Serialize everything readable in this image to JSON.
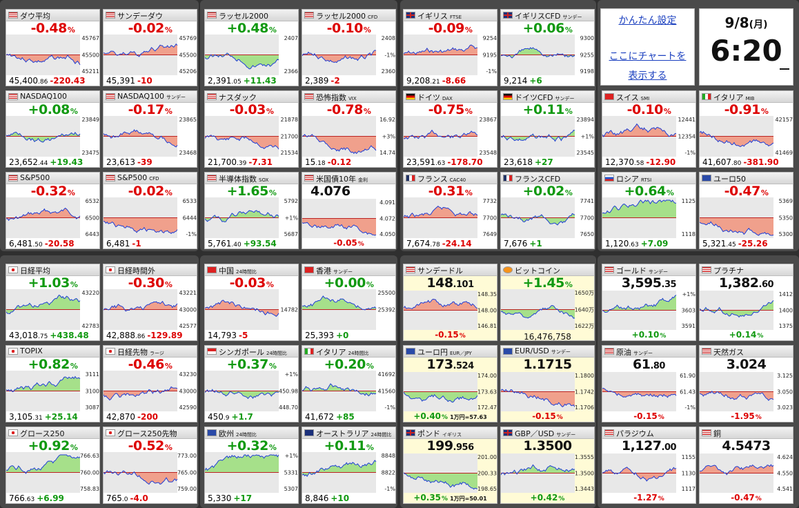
{
  "colors": {
    "up": "#119911",
    "down": "#dd0000",
    "line": "#1f3fd6",
    "fillUp": "#a6e08a",
    "fillDown": "#f0a08c",
    "base": "#bb2222"
  },
  "settings": {
    "simple_settings": "かんたん設定",
    "chart_line1": "ここにチャートを",
    "chart_line2": "表示する"
  },
  "clock": {
    "date": "9/8",
    "dow": "(月)",
    "time": "6:20"
  },
  "tiles": [
    {
      "name": "ダウ平均",
      "sub": "",
      "flag": "us",
      "chg": "-0.48",
      "dir": "dn",
      "ticks": [
        "45767",
        "45500",
        "45211"
      ],
      "p": "45,400",
      "pd": ".86",
      "d": "-220.43"
    },
    {
      "name": "サンデーダウ",
      "sub": "",
      "flag": "us",
      "chg": "-0.02",
      "dir": "dn",
      "ticks": [
        "45769",
        "45500",
        "45206"
      ],
      "p": "45,391",
      "pd": "",
      "d": "-10"
    },
    {
      "name": "ラッセル2000",
      "sub": "",
      "flag": "us",
      "chg": "+0.48",
      "dir": "up",
      "ticks": [
        "2407",
        "",
        "2366"
      ],
      "p": "2,391",
      "pd": ".05",
      "d": "+11.43"
    },
    {
      "name": "ラッセル2000",
      "sub": "CFD",
      "flag": "us",
      "chg": "-0.10",
      "dir": "dn",
      "ticks": [
        "2408",
        "-1%",
        "2360"
      ],
      "p": "2,389",
      "pd": "",
      "d": "-2"
    },
    {
      "name": "イギリス",
      "sub": "FTSE",
      "flag": "uk",
      "chg": "-0.09",
      "dir": "dn",
      "ticks": [
        "9254",
        "9195",
        "-1%"
      ],
      "p": "9,208",
      "pd": ".21",
      "d": "-8.66"
    },
    {
      "name": "イギリスCFD",
      "sub": "サンデー",
      "flag": "uk",
      "chg": "+0.06",
      "dir": "up",
      "ticks": [
        "9300",
        "9255",
        "9198"
      ],
      "p": "9,214",
      "pd": "",
      "d": "+6"
    },
    {
      "name": "NASDAQ100",
      "sub": "",
      "flag": "us",
      "chg": "+0.08",
      "dir": "up",
      "ticks": [
        "23849",
        "",
        "23475"
      ],
      "p": "23,652",
      "pd": ".44",
      "d": "+19.43"
    },
    {
      "name": "NASDAQ100",
      "sub": "サンデー",
      "flag": "us",
      "chg": "-0.17",
      "dir": "dn",
      "ticks": [
        "23865",
        "",
        "23468"
      ],
      "p": "23,613",
      "pd": "",
      "d": "-39"
    },
    {
      "name": "ナスダック",
      "sub": "",
      "flag": "us",
      "chg": "-0.03",
      "dir": "dn",
      "ticks": [
        "21878",
        "21700",
        "21534"
      ],
      "p": "21,700",
      "pd": ".39",
      "d": "-7.31"
    },
    {
      "name": "恐怖指数",
      "sub": "VIX",
      "flag": "us",
      "chg": "-0.78",
      "dir": "dn",
      "ticks": [
        "16.92",
        "+3%",
        "14.74"
      ],
      "p": "15",
      "pd": ".18",
      "d": "-0.12"
    },
    {
      "name": "ドイツ",
      "sub": "DAX",
      "flag": "de",
      "chg": "-0.75",
      "dir": "dn",
      "ticks": [
        "23867",
        "",
        "23548"
      ],
      "p": "23,591",
      "pd": ".63",
      "d": "-178.70"
    },
    {
      "name": "ドイツCFD",
      "sub": "サンデー",
      "flag": "de",
      "chg": "+0.11",
      "dir": "up",
      "ticks": [
        "23894",
        "+1%",
        "23545"
      ],
      "p": "23,618",
      "pd": "",
      "d": "+27"
    },
    {
      "name": "スイス",
      "sub": "SMI",
      "flag": "ch",
      "chg": "-0.10",
      "dir": "dn",
      "ticks": [
        "12441",
        "12354",
        "-1%"
      ],
      "p": "12,370",
      "pd": ".58",
      "d": "-12.90"
    },
    {
      "name": "イタリア",
      "sub": "MIB",
      "flag": "it",
      "chg": "-0.91",
      "dir": "dn",
      "ticks": [
        "42157",
        "",
        "41469"
      ],
      "p": "41,607",
      "pd": ".80",
      "d": "-381.90"
    },
    {
      "name": "S&P500",
      "sub": "",
      "flag": "us",
      "chg": "-0.32",
      "dir": "dn",
      "ticks": [
        "6532",
        "6500",
        "6443"
      ],
      "p": "6,481",
      "pd": ".50",
      "d": "-20.58"
    },
    {
      "name": "S&P500",
      "sub": "CFD",
      "flag": "us",
      "chg": "-0.02",
      "dir": "dn",
      "ticks": [
        "6533",
        "6444",
        "-1%"
      ],
      "p": "6,481",
      "pd": "",
      "d": "-1"
    },
    {
      "name": "半導体指数",
      "sub": "SOX",
      "flag": "us",
      "chg": "+1.65",
      "dir": "up",
      "ticks": [
        "5792",
        "+1%",
        "5687"
      ],
      "p": "5,761",
      "pd": ".40",
      "d": "+93.54"
    },
    {
      "name": "フランス",
      "sub": "CAC40",
      "flag": "fr",
      "chg": "-0.31",
      "dir": "dn",
      "ticks": [
        "7732",
        "7700",
        "7649"
      ],
      "p": "7,674",
      "pd": ".78",
      "d": "-24.14"
    },
    {
      "name": "フランスCFD",
      "sub": "",
      "flag": "fr",
      "chg": "+0.02",
      "dir": "up",
      "ticks": [
        "7741",
        "7700",
        "7650"
      ],
      "p": "7,676",
      "pd": "",
      "d": "+1"
    },
    {
      "name": "ロシア",
      "sub": "RTSI",
      "flag": "ru",
      "chg": "+0.64",
      "dir": "up",
      "ticks": [
        "1125",
        "",
        "1118"
      ],
      "p": "1,120",
      "pd": ".63",
      "d": "+7.09"
    },
    {
      "name": "ユーロ50",
      "sub": "",
      "flag": "eu",
      "chg": "-0.47",
      "dir": "dn",
      "ticks": [
        "5369",
        "5350",
        "5300"
      ],
      "p": "5,321",
      "pd": ".45",
      "d": "-25.26"
    },
    {
      "name": "日経平均",
      "sub": "",
      "flag": "jp",
      "chg": "+1.03",
      "dir": "up",
      "ticks": [
        "43220",
        "",
        "42783"
      ],
      "p": "43,018",
      "pd": ".75",
      "d": "+438.48"
    },
    {
      "name": "日経時間外",
      "sub": "",
      "flag": "jp",
      "chg": "-0.30",
      "dir": "dn",
      "ticks": [
        "43221",
        "43000",
        "42577"
      ],
      "p": "42,888",
      "pd": ".86",
      "d": "-129.89"
    },
    {
      "name": "中国",
      "sub": "24時間比",
      "flag": "cn",
      "chg": "-0.03",
      "dir": "dn",
      "ticks": [
        "",
        "14782",
        ""
      ],
      "p": "14,793",
      "pd": "",
      "d": "-5"
    },
    {
      "name": "香港",
      "sub": "サンデー",
      "flag": "hk",
      "chg": "+0.00",
      "dir": "up",
      "ticks": [
        "25500",
        "25392",
        ""
      ],
      "p": "25,393",
      "pd": "",
      "d": "+0"
    },
    {
      "name": "TOPIX",
      "sub": "",
      "flag": "jp",
      "chg": "+0.82",
      "dir": "up",
      "ticks": [
        "3111",
        "3100",
        "3087"
      ],
      "p": "3,105",
      "pd": ".31",
      "d": "+25.14"
    },
    {
      "name": "日経先物",
      "sub": "ラージ",
      "flag": "jp",
      "chg": "-0.46",
      "dir": "dn",
      "ticks": [
        "43230",
        "43000",
        "42590"
      ],
      "p": "42,870",
      "pd": "",
      "d": "-200"
    },
    {
      "name": "シンガポール",
      "sub": "24時間比",
      "flag": "sg",
      "chg": "+0.37",
      "dir": "up",
      "ticks": [
        "+1%",
        "450.98",
        "448.70"
      ],
      "p": "450",
      "pd": ".9",
      "d": "+1.7"
    },
    {
      "name": "イタリア",
      "sub": "24時間比",
      "flag": "it",
      "chg": "+0.20",
      "dir": "up",
      "ticks": [
        "41692",
        "41560",
        "-1%"
      ],
      "p": "41,672",
      "pd": "",
      "d": "+85"
    },
    {
      "name": "グロース250",
      "sub": "",
      "flag": "jp",
      "chg": "+0.92",
      "dir": "up",
      "ticks": [
        "766.63",
        "760.00",
        "758.83"
      ],
      "p": "766",
      "pd": ".63",
      "d": "+6.99"
    },
    {
      "name": "グロース250先物",
      "sub": "",
      "flag": "jp",
      "chg": "-0.52",
      "dir": "dn",
      "ticks": [
        "773.00",
        "765.00",
        "759.00"
      ],
      "p": "765",
      "pd": ".0",
      "d": "-4.0"
    },
    {
      "name": "欧州",
      "sub": "24時間比",
      "flag": "eu",
      "chg": "+0.32",
      "dir": "up",
      "ticks": [
        "+1%",
        "5331",
        "5307"
      ],
      "p": "5,330",
      "pd": "",
      "d": "+17"
    },
    {
      "name": "オーストラリア",
      "sub": "24時間比",
      "flag": "au",
      "chg": "+0.11",
      "dir": "up",
      "ticks": [
        "8848",
        "8822",
        "-1%"
      ],
      "p": "8,846",
      "pd": "",
      "d": "+10"
    }
  ],
  "jgb": {
    "name": "米国債10年",
    "sub": "金利",
    "price": "4.076",
    "ticks": [
      "4.091",
      "4.072",
      "4.050"
    ],
    "chg": "-0.05",
    "dir": "dn"
  },
  "ptiles": [
    {
      "name": "サンデードル",
      "sub": "",
      "flag": "us",
      "pi": "148",
      "pd": ".101",
      "ticks": [
        "148.35",
        "148.00",
        "146.81"
      ],
      "chg": "-0.15",
      "dir": "dn",
      "ex": "",
      "yellow": true
    },
    {
      "name": "ビットコイン",
      "sub": "",
      "flag": "btc",
      "pi": "",
      "pd": "",
      "top": "+1.45",
      "ticks": [
        "1650万",
        "1640万",
        "1622万"
      ],
      "bot": "16,476,758",
      "dir": "up",
      "yellow": true
    },
    {
      "name": "ゴールド",
      "sub": "サンデー",
      "flag": "us",
      "pi": "3,595",
      "pd": ".35",
      "ticks": [
        "+1%",
        "3603",
        "3591"
      ],
      "chg": "+0.10",
      "dir": "up",
      "ex": ""
    },
    {
      "name": "プラチナ",
      "sub": "",
      "flag": "us",
      "pi": "1,382",
      "pd": ".60",
      "ticks": [
        "1412",
        "1400",
        "1375"
      ],
      "chg": "+0.14",
      "dir": "up",
      "ex": ""
    },
    {
      "name": "ユーロ円",
      "sub": "EUR／JPY",
      "flag": "eu",
      "pi": "173",
      "pd": ".524",
      "ticks": [
        "174.00",
        "173.63",
        "172.47"
      ],
      "chg": "+0.40",
      "dir": "up",
      "ex": "1万円=57.63",
      "yellow": true
    },
    {
      "name": "EUR/USD",
      "sub": "サンデー",
      "flag": "eu",
      "pi": "1.1715",
      "pd": "",
      "ticks": [
        "1.1800",
        "1.1742",
        "1.1706"
      ],
      "chg": "-0.15",
      "dir": "dn",
      "ex": "",
      "yellow": true
    },
    {
      "name": "原油",
      "sub": "サンデー",
      "flag": "us",
      "pi": "61",
      "pd": ".80",
      "ticks": [
        "61.90",
        "61.43",
        "-1%"
      ],
      "chg": "-0.15",
      "dir": "dn",
      "ex": ""
    },
    {
      "name": "天然ガス",
      "sub": "",
      "flag": "us",
      "pi": "3.024",
      "pd": "",
      "ticks": [
        "3.125",
        "3.050",
        "3.023"
      ],
      "chg": "-1.95",
      "dir": "dn",
      "ex": ""
    },
    {
      "name": "ポンド",
      "sub": "イギリス",
      "flag": "uk",
      "pi": "199",
      "pd": ".956",
      "ticks": [
        "201.00",
        "200.33",
        "198.65"
      ],
      "chg": "+0.35",
      "dir": "up",
      "ex": "1万円=50.01",
      "yellow": true
    },
    {
      "name": "GBP／USD",
      "sub": "サンデー",
      "flag": "uk",
      "pi": "1.3500",
      "pd": "",
      "ticks": [
        "1.3555",
        "1.3500",
        "1.3443"
      ],
      "chg": "+0.42",
      "dir": "up",
      "ex": "",
      "yellow": true
    },
    {
      "name": "パラジウム",
      "sub": "",
      "flag": "us",
      "pi": "1,127",
      "pd": ".00",
      "ticks": [
        "1155",
        "1130",
        "1117"
      ],
      "chg": "-1.27",
      "dir": "dn",
      "ex": ""
    },
    {
      "name": "銅",
      "sub": "",
      "flag": "us",
      "pi": "4.5473",
      "pd": "",
      "ticks": [
        "4.624",
        "4.550",
        "4.541"
      ],
      "chg": "-0.47",
      "dir": "dn",
      "ex": ""
    }
  ]
}
